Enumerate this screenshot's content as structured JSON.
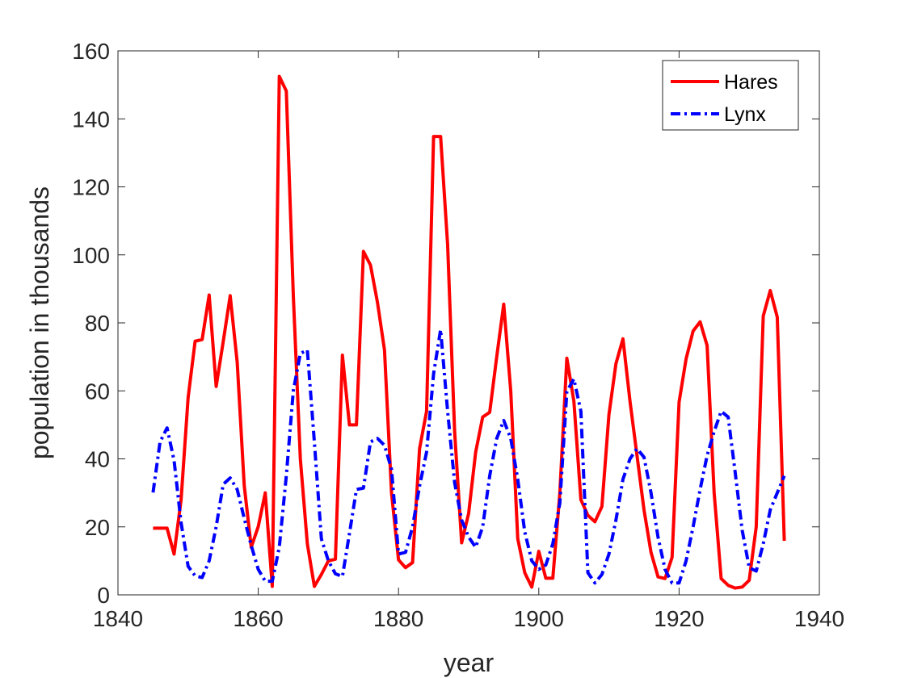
{
  "chart_data": {
    "type": "line",
    "title": "",
    "xlabel": "year",
    "ylabel": "population in thousands",
    "xlim": [
      1840,
      1940
    ],
    "ylim": [
      0,
      160
    ],
    "xticks": [
      1840,
      1860,
      1880,
      1900,
      1920,
      1940
    ],
    "yticks": [
      0,
      20,
      40,
      60,
      80,
      100,
      120,
      140,
      160
    ],
    "xtick_labels": [
      "1840",
      "1860",
      "1880",
      "1900",
      "1920",
      "1940"
    ],
    "ytick_labels": [
      "0",
      "20",
      "40",
      "60",
      "80",
      "100",
      "120",
      "140",
      "160"
    ],
    "grid": false,
    "legend_position": "top-right",
    "x": [
      1845,
      1846,
      1847,
      1848,
      1849,
      1850,
      1851,
      1852,
      1853,
      1854,
      1855,
      1856,
      1857,
      1858,
      1859,
      1860,
      1861,
      1862,
      1863,
      1864,
      1865,
      1866,
      1867,
      1868,
      1869,
      1870,
      1871,
      1872,
      1873,
      1874,
      1875,
      1876,
      1877,
      1878,
      1879,
      1880,
      1881,
      1882,
      1883,
      1884,
      1885,
      1886,
      1887,
      1888,
      1889,
      1890,
      1891,
      1892,
      1893,
      1894,
      1895,
      1896,
      1897,
      1898,
      1899,
      1900,
      1901,
      1902,
      1903,
      1904,
      1905,
      1906,
      1907,
      1908,
      1909,
      1910,
      1911,
      1912,
      1913,
      1914,
      1915,
      1916,
      1917,
      1918,
      1919,
      1920,
      1921,
      1922,
      1923,
      1924,
      1925,
      1926,
      1927,
      1928,
      1929,
      1930,
      1931,
      1932,
      1933,
      1934,
      1935
    ],
    "series": [
      {
        "name": "Hares",
        "color": "#ff0000",
        "line_style": "solid",
        "values": [
          19.6,
          19.6,
          19.6,
          12.0,
          28.0,
          58.0,
          74.6,
          75.1,
          88.2,
          61.3,
          74.4,
          88.0,
          68.4,
          32.2,
          14.0,
          20.1,
          30.0,
          2.5,
          152.5,
          148.2,
          88.0,
          40.0,
          15.0,
          2.5,
          6.0,
          10.0,
          10.5,
          70.5,
          50.0,
          50.0,
          101.0,
          97.0,
          86.0,
          72.0,
          30.0,
          10.3,
          8.0,
          9.5,
          43.0,
          54.0,
          134.8,
          134.8,
          103.0,
          48.0,
          15.3,
          24.0,
          42.0,
          52.3,
          53.7,
          70.0,
          85.5,
          60.0,
          16.5,
          6.5,
          2.3,
          12.8,
          4.9,
          4.9,
          30.0,
          69.6,
          57.0,
          28.0,
          23.4,
          21.5,
          26.0,
          53.0,
          68.0,
          75.3,
          57.0,
          41.0,
          25.0,
          12.5,
          5.3,
          4.8,
          11.0,
          56.7,
          69.4,
          77.6,
          80.3,
          73.3,
          30.0,
          4.8,
          2.8,
          2.0,
          2.3,
          4.3,
          20.0,
          82.0,
          89.5,
          81.7,
          15.9
        ]
      },
      {
        "name": "Lynx",
        "color": "#0000ff",
        "line_style": "dash-dot",
        "values": [
          30.1,
          45.0,
          49.1,
          39.5,
          21.2,
          8.4,
          5.6,
          5.1,
          10.0,
          20.0,
          32.5,
          34.4,
          31.0,
          22.5,
          14.5,
          7.5,
          4.0,
          4.0,
          14.0,
          35.0,
          60.0,
          71.0,
          72.0,
          45.0,
          16.5,
          10.0,
          6.2,
          5.4,
          18.0,
          31.0,
          31.4,
          45.0,
          46.0,
          44.0,
          37.0,
          12.0,
          12.5,
          20.0,
          32.0,
          42.0,
          65.0,
          78.0,
          54.0,
          33.0,
          22.0,
          17.0,
          14.0,
          20.0,
          35.0,
          46.0,
          51.3,
          46.0,
          34.0,
          18.5,
          10.0,
          7.5,
          8.8,
          15.0,
          27.0,
          59.8,
          63.5,
          54.0,
          6.5,
          3.5,
          6.0,
          12.0,
          22.0,
          34.0,
          40.0,
          43.0,
          40.5,
          30.0,
          17.0,
          7.5,
          3.5,
          3.5,
          10.0,
          20.0,
          31.0,
          41.0,
          48.0,
          54.0,
          52.3,
          36.0,
          19.0,
          8.0,
          7.0,
          15.0,
          25.0,
          30.0,
          35.0
        ]
      }
    ]
  }
}
